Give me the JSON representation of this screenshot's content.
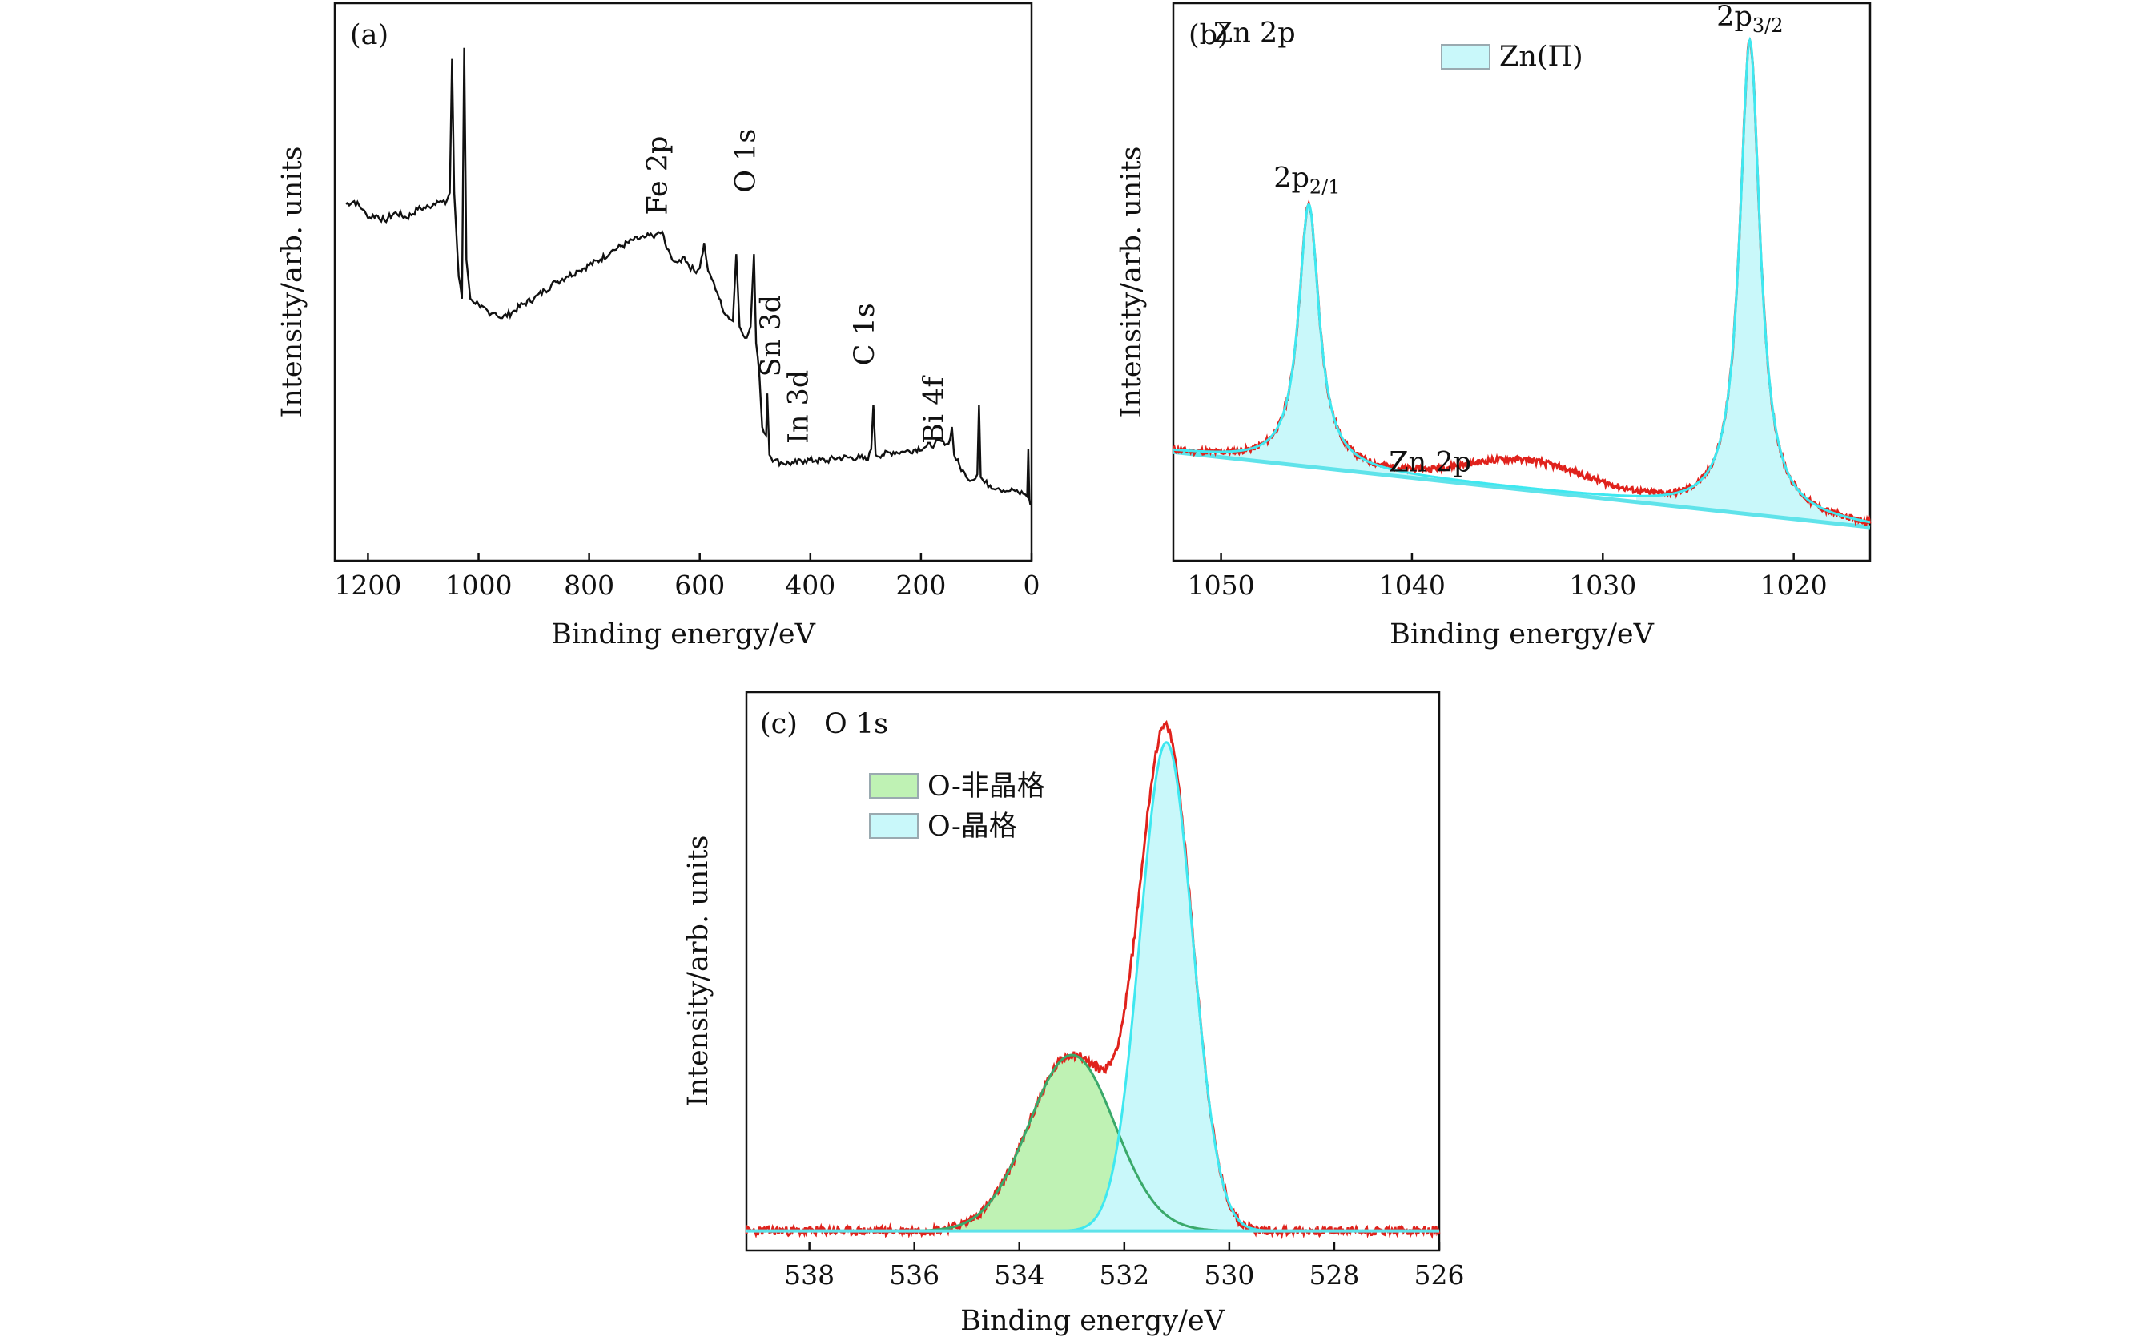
{
  "colors": {
    "survey": "#111111",
    "measured": "#e0221c",
    "lattice_fill": "#c9f8fa",
    "lattice_line": "#3ee8f0",
    "nonlattice_fill": "#bff2b4",
    "nonlattice_line": "#3aa96a",
    "background_line": "#5fe3ea"
  },
  "chart_data": [
    {
      "panel": "(a)",
      "type": "line",
      "xlabel": "Binding energy/eV",
      "ylabel": "Intensity/arb. units",
      "xlim": [
        1260,
        0
      ],
      "ylim": [
        0,
        100
      ],
      "xticks": [
        1200,
        1000,
        800,
        600,
        400,
        200,
        0
      ],
      "annotations": [
        {
          "text": "Fe 2p",
          "x": 660,
          "y": 62
        },
        {
          "text": "O 1s",
          "x": 500,
          "y": 66
        },
        {
          "text": "Sn 3d",
          "x": 455,
          "y": 33
        },
        {
          "text": "In 3d",
          "x": 405,
          "y": 21
        },
        {
          "text": "C 1s",
          "x": 285,
          "y": 35
        },
        {
          "text": "Bi 4f",
          "x": 160,
          "y": 21
        }
      ],
      "series": [
        {
          "label": "survey",
          "points": [
            [
              1240,
              64
            ],
            [
              1225,
              64.5
            ],
            [
              1210,
              63
            ],
            [
              1200,
              61.5
            ],
            [
              1185,
              62
            ],
            [
              1170,
              61
            ],
            [
              1150,
              62.5
            ],
            [
              1130,
              61.5
            ],
            [
              1110,
              63
            ],
            [
              1090,
              63.5
            ],
            [
              1075,
              64.5
            ],
            [
              1060,
              64
            ],
            [
              1052,
              66
            ],
            [
              1048,
              90
            ],
            [
              1044,
              66
            ],
            [
              1036,
              51
            ],
            [
              1030,
              47
            ],
            [
              1026,
              92
            ],
            [
              1022,
              54
            ],
            [
              1015,
              47
            ],
            [
              1000,
              46
            ],
            [
              980,
              44
            ],
            [
              970,
              44.5
            ],
            [
              960,
              43.5
            ],
            [
              940,
              44.5
            ],
            [
              920,
              46
            ],
            [
              900,
              47
            ],
            [
              880,
              48.5
            ],
            [
              860,
              50
            ],
            [
              840,
              51
            ],
            [
              820,
              52
            ],
            [
              800,
              53
            ],
            [
              780,
              54
            ],
            [
              760,
              55.5
            ],
            [
              740,
              56.5
            ],
            [
              720,
              57.5
            ],
            [
              700,
              58
            ],
            [
              680,
              58.5
            ],
            [
              668,
              59
            ],
            [
              660,
              56
            ],
            [
              650,
              54
            ],
            [
              640,
              53.5
            ],
            [
              628,
              54.5
            ],
            [
              620,
              53
            ],
            [
              610,
              52
            ],
            [
              600,
              52.5
            ],
            [
              592,
              57
            ],
            [
              585,
              52
            ],
            [
              575,
              50
            ],
            [
              568,
              48
            ],
            [
              560,
              45.5
            ],
            [
              550,
              44
            ],
            [
              540,
              43
            ],
            [
              534,
              55
            ],
            [
              528,
              42
            ],
            [
              515,
              40
            ],
            [
              508,
              42
            ],
            [
              502,
              55
            ],
            [
              498,
              39
            ],
            [
              492,
              33
            ],
            [
              487,
              24
            ],
            [
              484,
              23
            ],
            [
              480,
              22.5
            ],
            [
              478,
              30
            ],
            [
              474,
              19
            ],
            [
              465,
              18
            ],
            [
              450,
              17.5
            ],
            [
              430,
              17.5
            ],
            [
              410,
              18
            ],
            [
              390,
              18
            ],
            [
              370,
              18
            ],
            [
              350,
              18.5
            ],
            [
              330,
              18.5
            ],
            [
              310,
              18.5
            ],
            [
              296,
              18
            ],
            [
              290,
              20
            ],
            [
              286,
              28
            ],
            [
              282,
              19
            ],
            [
              270,
              19
            ],
            [
              250,
              19.5
            ],
            [
              230,
              19.5
            ],
            [
              210,
              20
            ],
            [
              190,
              20.5
            ],
            [
              175,
              21
            ],
            [
              160,
              21.5
            ],
            [
              150,
              21
            ],
            [
              144,
              24
            ],
            [
              140,
              19
            ],
            [
              130,
              17
            ],
            [
              118,
              15
            ],
            [
              105,
              14.5
            ],
            [
              98,
              15.5
            ],
            [
              95,
              28
            ],
            [
              92,
              15
            ],
            [
              85,
              14
            ],
            [
              75,
              13.5
            ],
            [
              60,
              13
            ],
            [
              45,
              12.5
            ],
            [
              30,
              12.5
            ],
            [
              15,
              12
            ],
            [
              8,
              11.5
            ],
            [
              6,
              20
            ],
            [
              4,
              11
            ],
            [
              2,
              10
            ]
          ]
        }
      ]
    },
    {
      "panel": "(b)",
      "type": "line",
      "xlabel": "Binding energy/eV",
      "ylabel": "Intensity/arb. units",
      "xlim": [
        1052.5,
        1016
      ],
      "ylim": [
        0,
        100
      ],
      "xticks": [
        1050,
        1040,
        1030,
        1020
      ],
      "annotations": [
        {
          "text": "Zn 2p",
          "x": 1050.4,
          "y": 93
        },
        {
          "text": "2p",
          "sub": "2/1",
          "x": 1045.5,
          "y": 67
        },
        {
          "text": "2p",
          "sub": "3/2",
          "x": 1022.3,
          "y": 96
        },
        {
          "text": "Zn 2p",
          "x": 1041.2,
          "y": 16
        }
      ],
      "legend": [
        {
          "label": "Zn(Π)",
          "swatch": "lattice"
        }
      ],
      "background": [
        [
          1052.5,
          19.5
        ],
        [
          1016,
          6
        ]
      ],
      "peaks": [
        {
          "center": 1045.4,
          "height": 47,
          "width": 0.65
        },
        {
          "center": 1022.3,
          "height": 85,
          "width": 0.65
        }
      ],
      "hump": {
        "center": 1034,
        "height": 5,
        "width": 4.5
      }
    },
    {
      "panel": "(c)",
      "type": "line",
      "xlabel": "Binding energy/eV",
      "ylabel": "Intensity/arb. units",
      "xlim": [
        539.2,
        526
      ],
      "ylim": [
        0,
        100
      ],
      "xticks": [
        538,
        536,
        534,
        532,
        530,
        528,
        526
      ],
      "title_text": "O 1s",
      "legend": [
        {
          "label": "O-非晶格",
          "swatch": "nonlattice"
        },
        {
          "label": "O-晶格",
          "swatch": "lattice"
        }
      ],
      "baseline": 3.5,
      "components": [
        {
          "name": "O-非晶格",
          "center": 533.0,
          "height": 31.5,
          "sigma": 0.82
        },
        {
          "name": "O-晶格",
          "center": 531.2,
          "height": 87.5,
          "sigma": 0.5
        }
      ]
    }
  ]
}
